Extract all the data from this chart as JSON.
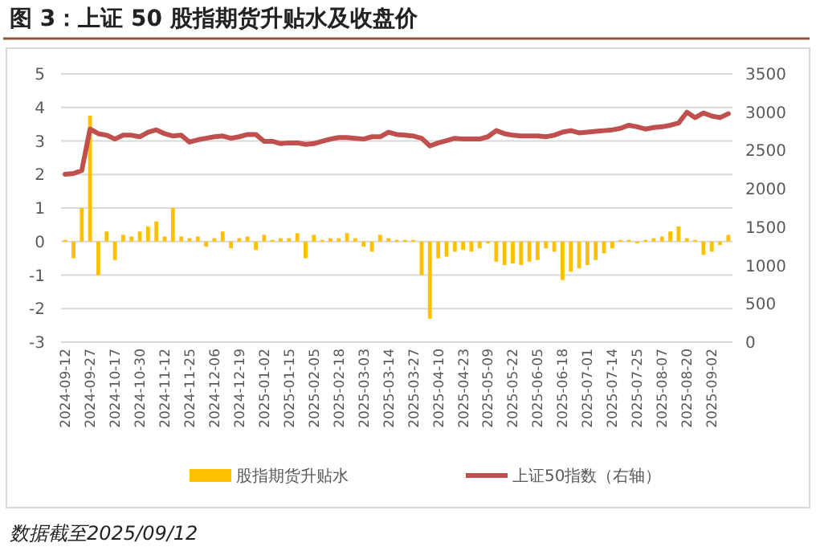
{
  "chart_data": {
    "type": "bar",
    "title": "图 3：上证 50 股指期货升贴水及收盘价",
    "annotations": [
      "数据截至2025/09/12"
    ],
    "categories": [
      "2024-09-12",
      null,
      null,
      "2024-09-27",
      null,
      null,
      "2024-10-17",
      null,
      null,
      "2024-10-30",
      null,
      null,
      "2024-11-12",
      null,
      null,
      "2024-11-25",
      null,
      null,
      "2024-12-06",
      null,
      null,
      "2024-12-19",
      null,
      null,
      "2025-01-02",
      null,
      null,
      "2025-01-15",
      null,
      null,
      "2025-02-05",
      null,
      null,
      "2025-02-18",
      null,
      null,
      "2025-03-03",
      null,
      null,
      "2025-03-14",
      null,
      null,
      "2025-03-27",
      null,
      null,
      "2025-04-10",
      null,
      null,
      "2025-04-23",
      null,
      null,
      "2025-05-09",
      null,
      null,
      "2025-05-22",
      null,
      null,
      "2025-06-05",
      null,
      null,
      "2025-06-18",
      null,
      null,
      "2025-07-01",
      null,
      null,
      "2025-07-14",
      null,
      null,
      "2025-07-25",
      null,
      null,
      "2025-08-07",
      null,
      null,
      "2025-08-20",
      null,
      null,
      "2025-09-02",
      null,
      null
    ],
    "series": [
      {
        "name": "股指期货升贴水",
        "color": "#ffc000",
        "values": [
          0.05,
          -0.5,
          1.0,
          3.75,
          -1.0,
          0.3,
          -0.55,
          0.2,
          0.15,
          0.3,
          0.45,
          0.6,
          0.15,
          1.0,
          0.15,
          0.1,
          0.15,
          -0.15,
          0.1,
          0.3,
          -0.2,
          0.1,
          0.15,
          -0.25,
          0.2,
          0.05,
          0.1,
          0.1,
          0.25,
          -0.5,
          0.2,
          0.05,
          0.1,
          0.1,
          0.25,
          0.1,
          -0.15,
          -0.3,
          0.2,
          0.1,
          0.05,
          0.05,
          0.05,
          -1.0,
          -2.3,
          -0.5,
          -0.45,
          -0.3,
          -0.25,
          -0.3,
          -0.2,
          -0.05,
          -0.6,
          -0.7,
          -0.65,
          -0.7,
          -0.6,
          -0.55,
          -0.2,
          -0.3,
          -1.15,
          -0.9,
          -0.8,
          -0.7,
          -0.55,
          -0.35,
          -0.2,
          0.05,
          0.05,
          -0.05,
          0.05,
          0.1,
          0.15,
          0.3,
          0.45,
          0.1,
          0.05,
          -0.4,
          -0.3,
          -0.1,
          0.2
        ]
      },
      {
        "name": "上证50指数（右轴）",
        "type": "line",
        "axis": "y2",
        "color": "#c0504d",
        "values": [
          2190,
          2200,
          2240,
          2780,
          2720,
          2700,
          2650,
          2700,
          2700,
          2680,
          2740,
          2770,
          2720,
          2690,
          2700,
          2610,
          2640,
          2660,
          2680,
          2690,
          2660,
          2680,
          2710,
          2710,
          2620,
          2620,
          2590,
          2600,
          2600,
          2580,
          2590,
          2620,
          2650,
          2670,
          2670,
          2660,
          2650,
          2680,
          2680,
          2740,
          2710,
          2700,
          2690,
          2660,
          2560,
          2600,
          2630,
          2660,
          2650,
          2650,
          2650,
          2680,
          2760,
          2720,
          2700,
          2690,
          2690,
          2690,
          2680,
          2700,
          2740,
          2760,
          2730,
          2740,
          2750,
          2760,
          2770,
          2790,
          2830,
          2810,
          2780,
          2800,
          2810,
          2830,
          2860,
          3000,
          2930,
          2990,
          2950,
          2930,
          2980
        ]
      }
    ],
    "ylim": [
      -3,
      5
    ],
    "yticks": [
      -3,
      -2,
      -1,
      0,
      1,
      2,
      3,
      4,
      5
    ],
    "y2lim": [
      0,
      3500
    ],
    "y2ticks": [
      0,
      500,
      1000,
      1500,
      2000,
      2500,
      3000,
      3500
    ],
    "grid": "y",
    "legend": "bottom"
  }
}
